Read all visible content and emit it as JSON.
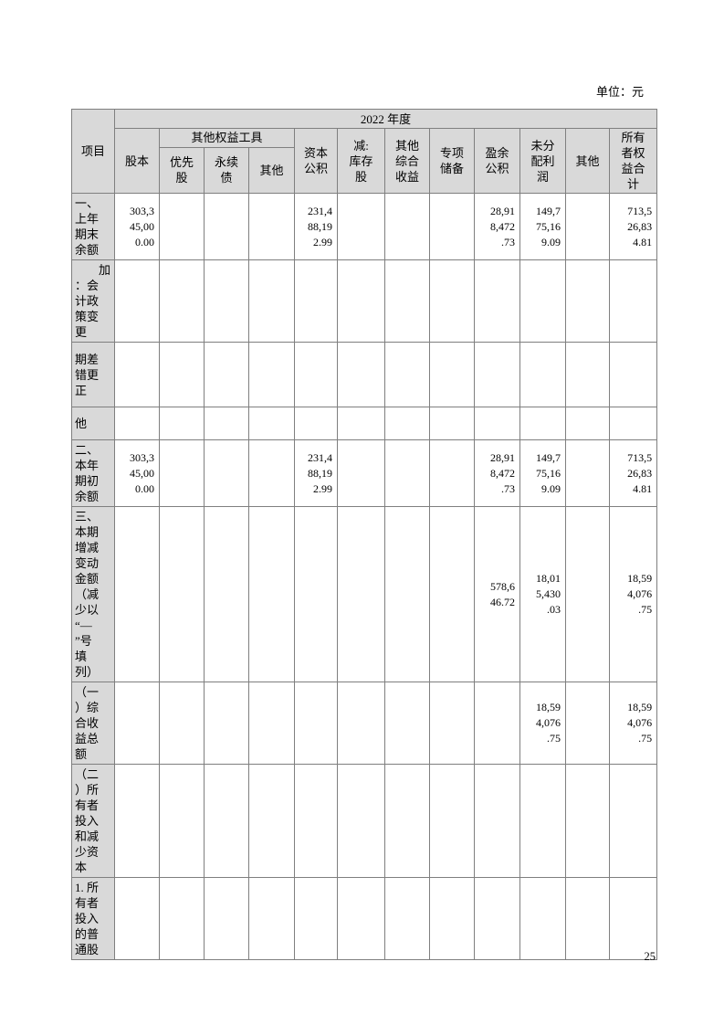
{
  "page": {
    "unit_label": "单位：元",
    "page_number": "25"
  },
  "table": {
    "item_header": "项目",
    "year_header": "2022 年度",
    "group_header": "其他权益工具",
    "columns": [
      "股本",
      "优先\n股",
      "永续\n债",
      "其他",
      "资本\n公积",
      "减:\n库存\n股",
      "其他\n综合\n收益",
      "专项\n储备",
      "盈余\n公积",
      "未分\n配利\n润",
      "其他",
      "所有\n者权\n益合\n计"
    ],
    "rows": [
      {
        "label": "一、\n上年\n期末\n余额",
        "values": [
          "303,3\n45,00\n0.00",
          "",
          "",
          "",
          "231,4\n88,19\n2.99",
          "",
          "",
          "",
          "28,91\n8,472\n.73",
          "149,7\n75,16\n9.09",
          "",
          "713,5\n26,83\n4.81"
        ]
      },
      {
        "label": "　　加\n：会\n计政\n策变\n更",
        "values": [
          "",
          "",
          "",
          "",
          "",
          "",
          "",
          "",
          "",
          "",
          "",
          ""
        ]
      },
      {
        "label": "期差\n错更\n正",
        "values": [
          "",
          "",
          "",
          "",
          "",
          "",
          "",
          "",
          "",
          "",
          "",
          ""
        ]
      },
      {
        "label": "他",
        "values": [
          "",
          "",
          "",
          "",
          "",
          "",
          "",
          "",
          "",
          "",
          "",
          ""
        ]
      },
      {
        "label": "二、\n本年\n期初\n余额",
        "values": [
          "303,3\n45,00\n0.00",
          "",
          "",
          "",
          "231,4\n88,19\n2.99",
          "",
          "",
          "",
          "28,91\n8,472\n.73",
          "149,7\n75,16\n9.09",
          "",
          "713,5\n26,83\n4.81"
        ]
      },
      {
        "label": "三、\n本期\n增减\n变动\n金额\n（减\n少以\n“—\n”号\n填\n列）",
        "values": [
          "",
          "",
          "",
          "",
          "",
          "",
          "",
          "",
          "578,6\n46.72",
          "18,01\n5,430\n.03",
          "",
          "18,59\n4,076\n.75"
        ]
      },
      {
        "label": "（一\n）综\n合收\n益总\n额",
        "values": [
          "",
          "",
          "",
          "",
          "",
          "",
          "",
          "",
          "",
          "18,59\n4,076\n.75",
          "",
          "18,59\n4,076\n.75"
        ]
      },
      {
        "label": "（二\n）所\n有者\n投入\n和减\n少资\n本",
        "values": [
          "",
          "",
          "",
          "",
          "",
          "",
          "",
          "",
          "",
          "",
          "",
          ""
        ]
      },
      {
        "label": "1. 所\n有者\n投入\n的普\n通股",
        "values": [
          "",
          "",
          "",
          "",
          "",
          "",
          "",
          "",
          "",
          "",
          "",
          ""
        ]
      }
    ]
  }
}
